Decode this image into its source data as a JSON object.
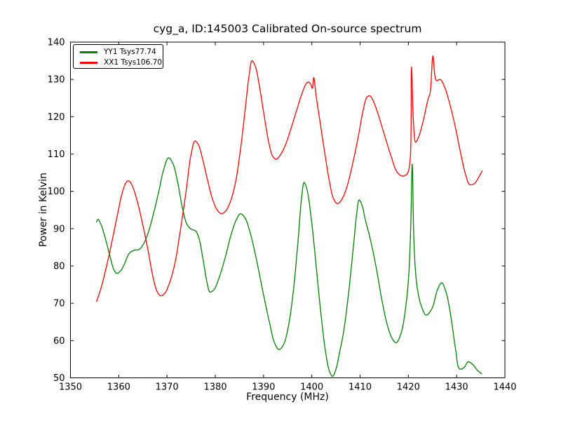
{
  "colors": {
    "background": "#ffffff",
    "axis": "#000000",
    "series_yy1": "#008000",
    "series_xx1": "#ff0000"
  },
  "chart_data": {
    "type": "line",
    "title": "cyg_a, ID:145003 Calibrated On-source spectrum",
    "xlabel": "Frequency (MHz)",
    "ylabel": "Power in Kelvin",
    "xlim": [
      1350,
      1440
    ],
    "ylim": [
      50,
      140
    ],
    "xticks": [
      1350,
      1360,
      1370,
      1380,
      1390,
      1400,
      1410,
      1420,
      1430,
      1440
    ],
    "yticks": [
      50,
      60,
      70,
      80,
      90,
      100,
      110,
      120,
      130,
      140
    ],
    "grid": false,
    "legend_position": "upper left",
    "series": [
      {
        "name": "YY1 Tsys77.74",
        "color": "#008000",
        "points": [
          [
            1355.4,
            91.8
          ],
          [
            1355.7,
            92.5
          ],
          [
            1356.3,
            91.2
          ],
          [
            1357.2,
            87.5
          ],
          [
            1358.2,
            82.5
          ],
          [
            1359.0,
            79.0
          ],
          [
            1359.6,
            78.0
          ],
          [
            1360.4,
            78.7
          ],
          [
            1361.2,
            80.6
          ],
          [
            1362.2,
            83.4
          ],
          [
            1363.2,
            84.2
          ],
          [
            1364.2,
            84.4
          ],
          [
            1365.0,
            85.6
          ],
          [
            1366.0,
            88.5
          ],
          [
            1367.2,
            94.0
          ],
          [
            1368.3,
            100.0
          ],
          [
            1369.3,
            105.8
          ],
          [
            1370.3,
            109.0
          ],
          [
            1371.2,
            107.5
          ],
          [
            1372.2,
            102.5
          ],
          [
            1373.2,
            95.5
          ],
          [
            1374.2,
            91.0
          ],
          [
            1375.1,
            89.8
          ],
          [
            1375.9,
            89.4
          ],
          [
            1376.6,
            87.5
          ],
          [
            1377.5,
            81.5
          ],
          [
            1378.3,
            75.5
          ],
          [
            1378.9,
            73.0
          ],
          [
            1379.7,
            73.6
          ],
          [
            1380.7,
            76.5
          ],
          [
            1382.0,
            82.0
          ],
          [
            1383.3,
            88.5
          ],
          [
            1384.4,
            92.5
          ],
          [
            1385.2,
            94.0
          ],
          [
            1386.1,
            93.0
          ],
          [
            1387.1,
            89.5
          ],
          [
            1388.4,
            82.5
          ],
          [
            1389.8,
            73.5
          ],
          [
            1391.2,
            65.0
          ],
          [
            1392.3,
            59.3
          ],
          [
            1393.2,
            57.6
          ],
          [
            1394.1,
            58.8
          ],
          [
            1395.1,
            63.5
          ],
          [
            1396.1,
            72.5
          ],
          [
            1397.1,
            86.0
          ],
          [
            1397.9,
            98.5
          ],
          [
            1398.4,
            102.4
          ],
          [
            1399.0,
            100.5
          ],
          [
            1399.9,
            92.5
          ],
          [
            1400.9,
            80.0
          ],
          [
            1401.9,
            67.0
          ],
          [
            1402.9,
            56.5
          ],
          [
            1403.7,
            51.6
          ],
          [
            1404.3,
            50.4
          ],
          [
            1405.0,
            52.3
          ],
          [
            1405.7,
            56.5
          ],
          [
            1406.6,
            62.5
          ],
          [
            1407.6,
            72.5
          ],
          [
            1408.6,
            85.0
          ],
          [
            1409.3,
            94.0
          ],
          [
            1409.8,
            97.7
          ],
          [
            1410.4,
            96.3
          ],
          [
            1411.1,
            92.3
          ],
          [
            1412.1,
            87.3
          ],
          [
            1413.3,
            79.8
          ],
          [
            1414.6,
            70.3
          ],
          [
            1415.8,
            63.4
          ],
          [
            1416.8,
            60.2
          ],
          [
            1417.5,
            59.4
          ],
          [
            1418.5,
            62.0
          ],
          [
            1419.5,
            69.5
          ],
          [
            1420.1,
            78.0
          ],
          [
            1420.5,
            91.0
          ],
          [
            1420.8,
            107.3
          ],
          [
            1421.2,
            85.0
          ],
          [
            1421.8,
            74.5
          ],
          [
            1422.7,
            69.2
          ],
          [
            1423.7,
            66.8
          ],
          [
            1424.9,
            68.6
          ],
          [
            1426.0,
            73.5
          ],
          [
            1426.9,
            75.5
          ],
          [
            1427.8,
            73.0
          ],
          [
            1428.8,
            66.5
          ],
          [
            1429.8,
            57.5
          ],
          [
            1430.6,
            52.4
          ],
          [
            1431.5,
            52.7
          ],
          [
            1432.4,
            54.3
          ],
          [
            1433.4,
            53.5
          ],
          [
            1434.3,
            52.0
          ],
          [
            1435.2,
            51.1
          ]
        ]
      },
      {
        "name": "XX1 Tsys106.70",
        "color": "#ff0000",
        "points": [
          [
            1355.4,
            70.5
          ],
          [
            1356.2,
            73.5
          ],
          [
            1357.3,
            79.0
          ],
          [
            1358.5,
            86.0
          ],
          [
            1359.7,
            93.5
          ],
          [
            1360.7,
            99.5
          ],
          [
            1361.6,
            102.5
          ],
          [
            1362.1,
            102.8
          ],
          [
            1362.8,
            101.5
          ],
          [
            1363.8,
            97.5
          ],
          [
            1364.9,
            91.5
          ],
          [
            1366.1,
            84.0
          ],
          [
            1367.1,
            77.0
          ],
          [
            1368.0,
            73.0
          ],
          [
            1368.7,
            72.0
          ],
          [
            1369.5,
            72.6
          ],
          [
            1370.4,
            75.0
          ],
          [
            1371.6,
            80.5
          ],
          [
            1372.7,
            89.0
          ],
          [
            1373.9,
            99.5
          ],
          [
            1375.0,
            110.0
          ],
          [
            1375.8,
            113.5
          ],
          [
            1376.5,
            112.5
          ],
          [
            1377.4,
            108.5
          ],
          [
            1378.4,
            103.0
          ],
          [
            1379.4,
            98.0
          ],
          [
            1380.4,
            95.0
          ],
          [
            1381.3,
            94.0
          ],
          [
            1382.2,
            94.8
          ],
          [
            1383.2,
            97.5
          ],
          [
            1384.2,
            102.5
          ],
          [
            1385.2,
            111.0
          ],
          [
            1386.2,
            122.0
          ],
          [
            1387.0,
            131.0
          ],
          [
            1387.6,
            135.0
          ],
          [
            1388.3,
            133.5
          ],
          [
            1389.1,
            128.5
          ],
          [
            1390.1,
            120.5
          ],
          [
            1391.1,
            113.0
          ],
          [
            1391.9,
            109.4
          ],
          [
            1392.6,
            108.6
          ],
          [
            1393.4,
            109.6
          ],
          [
            1394.4,
            112.0
          ],
          [
            1395.6,
            116.5
          ],
          [
            1396.8,
            121.5
          ],
          [
            1397.9,
            126.0
          ],
          [
            1398.8,
            128.8
          ],
          [
            1399.3,
            129.3
          ],
          [
            1399.8,
            128.6
          ],
          [
            1400.1,
            127.6
          ],
          [
            1400.4,
            130.5
          ],
          [
            1400.9,
            125.5
          ],
          [
            1401.6,
            119.5
          ],
          [
            1402.6,
            111.0
          ],
          [
            1403.6,
            103.0
          ],
          [
            1404.5,
            98.0
          ],
          [
            1405.3,
            96.7
          ],
          [
            1406.1,
            97.6
          ],
          [
            1407.1,
            100.5
          ],
          [
            1408.3,
            106.5
          ],
          [
            1409.6,
            114.5
          ],
          [
            1410.6,
            121.5
          ],
          [
            1411.4,
            125.2
          ],
          [
            1412.0,
            125.6
          ],
          [
            1412.7,
            124.3
          ],
          [
            1413.7,
            120.8
          ],
          [
            1415.0,
            115.3
          ],
          [
            1416.4,
            109.5
          ],
          [
            1417.6,
            105.3
          ],
          [
            1418.7,
            104.1
          ],
          [
            1419.7,
            104.6
          ],
          [
            1420.3,
            107.5
          ],
          [
            1420.65,
            133.3
          ],
          [
            1421.1,
            117.5
          ],
          [
            1421.5,
            113.2
          ],
          [
            1422.1,
            114.5
          ],
          [
            1423.1,
            119.0
          ],
          [
            1424.1,
            124.8
          ],
          [
            1424.5,
            126.3
          ],
          [
            1425.1,
            136.3
          ],
          [
            1425.8,
            129.7
          ],
          [
            1426.6,
            130.0
          ],
          [
            1427.4,
            128.3
          ],
          [
            1428.4,
            124.3
          ],
          [
            1429.6,
            118.0
          ],
          [
            1430.9,
            109.8
          ],
          [
            1431.9,
            104.3
          ],
          [
            1432.7,
            101.8
          ],
          [
            1433.6,
            102.0
          ],
          [
            1434.5,
            103.6
          ],
          [
            1435.3,
            105.5
          ]
        ]
      }
    ]
  }
}
